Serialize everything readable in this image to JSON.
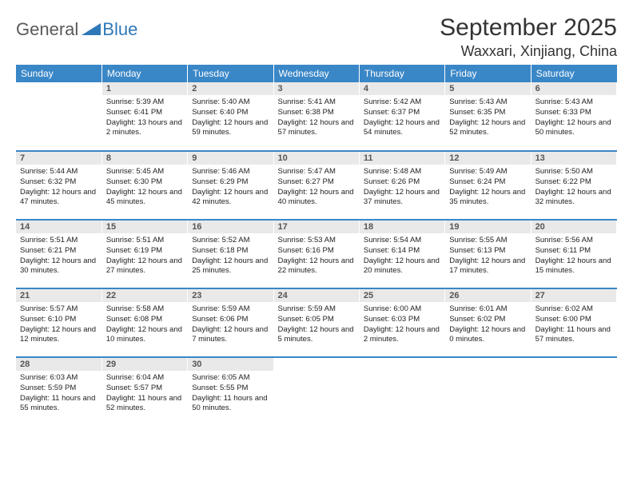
{
  "logo": {
    "part1": "General",
    "part2": "Blue"
  },
  "title": "September 2025",
  "location": "Waxxari, Xinjiang, China",
  "day_headers": [
    "Sunday",
    "Monday",
    "Tuesday",
    "Wednesday",
    "Thursday",
    "Friday",
    "Saturday"
  ],
  "colors": {
    "header_bg": "#3a87c7",
    "header_text": "#ffffff",
    "daynum_bg": "#e9e9e9",
    "row_border": "#3a87c7",
    "logo_grey": "#595959",
    "logo_blue": "#2f78b7"
  },
  "weeks": [
    [
      {
        "num": "",
        "sunrise": "",
        "sunset": "",
        "daylight": "",
        "empty": true
      },
      {
        "num": "1",
        "sunrise": "Sunrise: 5:39 AM",
        "sunset": "Sunset: 6:41 PM",
        "daylight": "Daylight: 13 hours and 2 minutes."
      },
      {
        "num": "2",
        "sunrise": "Sunrise: 5:40 AM",
        "sunset": "Sunset: 6:40 PM",
        "daylight": "Daylight: 12 hours and 59 minutes."
      },
      {
        "num": "3",
        "sunrise": "Sunrise: 5:41 AM",
        "sunset": "Sunset: 6:38 PM",
        "daylight": "Daylight: 12 hours and 57 minutes."
      },
      {
        "num": "4",
        "sunrise": "Sunrise: 5:42 AM",
        "sunset": "Sunset: 6:37 PM",
        "daylight": "Daylight: 12 hours and 54 minutes."
      },
      {
        "num": "5",
        "sunrise": "Sunrise: 5:43 AM",
        "sunset": "Sunset: 6:35 PM",
        "daylight": "Daylight: 12 hours and 52 minutes."
      },
      {
        "num": "6",
        "sunrise": "Sunrise: 5:43 AM",
        "sunset": "Sunset: 6:33 PM",
        "daylight": "Daylight: 12 hours and 50 minutes."
      }
    ],
    [
      {
        "num": "7",
        "sunrise": "Sunrise: 5:44 AM",
        "sunset": "Sunset: 6:32 PM",
        "daylight": "Daylight: 12 hours and 47 minutes."
      },
      {
        "num": "8",
        "sunrise": "Sunrise: 5:45 AM",
        "sunset": "Sunset: 6:30 PM",
        "daylight": "Daylight: 12 hours and 45 minutes."
      },
      {
        "num": "9",
        "sunrise": "Sunrise: 5:46 AM",
        "sunset": "Sunset: 6:29 PM",
        "daylight": "Daylight: 12 hours and 42 minutes."
      },
      {
        "num": "10",
        "sunrise": "Sunrise: 5:47 AM",
        "sunset": "Sunset: 6:27 PM",
        "daylight": "Daylight: 12 hours and 40 minutes."
      },
      {
        "num": "11",
        "sunrise": "Sunrise: 5:48 AM",
        "sunset": "Sunset: 6:26 PM",
        "daylight": "Daylight: 12 hours and 37 minutes."
      },
      {
        "num": "12",
        "sunrise": "Sunrise: 5:49 AM",
        "sunset": "Sunset: 6:24 PM",
        "daylight": "Daylight: 12 hours and 35 minutes."
      },
      {
        "num": "13",
        "sunrise": "Sunrise: 5:50 AM",
        "sunset": "Sunset: 6:22 PM",
        "daylight": "Daylight: 12 hours and 32 minutes."
      }
    ],
    [
      {
        "num": "14",
        "sunrise": "Sunrise: 5:51 AM",
        "sunset": "Sunset: 6:21 PM",
        "daylight": "Daylight: 12 hours and 30 minutes."
      },
      {
        "num": "15",
        "sunrise": "Sunrise: 5:51 AM",
        "sunset": "Sunset: 6:19 PM",
        "daylight": "Daylight: 12 hours and 27 minutes."
      },
      {
        "num": "16",
        "sunrise": "Sunrise: 5:52 AM",
        "sunset": "Sunset: 6:18 PM",
        "daylight": "Daylight: 12 hours and 25 minutes."
      },
      {
        "num": "17",
        "sunrise": "Sunrise: 5:53 AM",
        "sunset": "Sunset: 6:16 PM",
        "daylight": "Daylight: 12 hours and 22 minutes."
      },
      {
        "num": "18",
        "sunrise": "Sunrise: 5:54 AM",
        "sunset": "Sunset: 6:14 PM",
        "daylight": "Daylight: 12 hours and 20 minutes."
      },
      {
        "num": "19",
        "sunrise": "Sunrise: 5:55 AM",
        "sunset": "Sunset: 6:13 PM",
        "daylight": "Daylight: 12 hours and 17 minutes."
      },
      {
        "num": "20",
        "sunrise": "Sunrise: 5:56 AM",
        "sunset": "Sunset: 6:11 PM",
        "daylight": "Daylight: 12 hours and 15 minutes."
      }
    ],
    [
      {
        "num": "21",
        "sunrise": "Sunrise: 5:57 AM",
        "sunset": "Sunset: 6:10 PM",
        "daylight": "Daylight: 12 hours and 12 minutes."
      },
      {
        "num": "22",
        "sunrise": "Sunrise: 5:58 AM",
        "sunset": "Sunset: 6:08 PM",
        "daylight": "Daylight: 12 hours and 10 minutes."
      },
      {
        "num": "23",
        "sunrise": "Sunrise: 5:59 AM",
        "sunset": "Sunset: 6:06 PM",
        "daylight": "Daylight: 12 hours and 7 minutes."
      },
      {
        "num": "24",
        "sunrise": "Sunrise: 5:59 AM",
        "sunset": "Sunset: 6:05 PM",
        "daylight": "Daylight: 12 hours and 5 minutes."
      },
      {
        "num": "25",
        "sunrise": "Sunrise: 6:00 AM",
        "sunset": "Sunset: 6:03 PM",
        "daylight": "Daylight: 12 hours and 2 minutes."
      },
      {
        "num": "26",
        "sunrise": "Sunrise: 6:01 AM",
        "sunset": "Sunset: 6:02 PM",
        "daylight": "Daylight: 12 hours and 0 minutes."
      },
      {
        "num": "27",
        "sunrise": "Sunrise: 6:02 AM",
        "sunset": "Sunset: 6:00 PM",
        "daylight": "Daylight: 11 hours and 57 minutes."
      }
    ],
    [
      {
        "num": "28",
        "sunrise": "Sunrise: 6:03 AM",
        "sunset": "Sunset: 5:59 PM",
        "daylight": "Daylight: 11 hours and 55 minutes."
      },
      {
        "num": "29",
        "sunrise": "Sunrise: 6:04 AM",
        "sunset": "Sunset: 5:57 PM",
        "daylight": "Daylight: 11 hours and 52 minutes."
      },
      {
        "num": "30",
        "sunrise": "Sunrise: 6:05 AM",
        "sunset": "Sunset: 5:55 PM",
        "daylight": "Daylight: 11 hours and 50 minutes."
      },
      {
        "num": "",
        "sunrise": "",
        "sunset": "",
        "daylight": "",
        "empty": true
      },
      {
        "num": "",
        "sunrise": "",
        "sunset": "",
        "daylight": "",
        "empty": true
      },
      {
        "num": "",
        "sunrise": "",
        "sunset": "",
        "daylight": "",
        "empty": true
      },
      {
        "num": "",
        "sunrise": "",
        "sunset": "",
        "daylight": "",
        "empty": true
      }
    ]
  ]
}
